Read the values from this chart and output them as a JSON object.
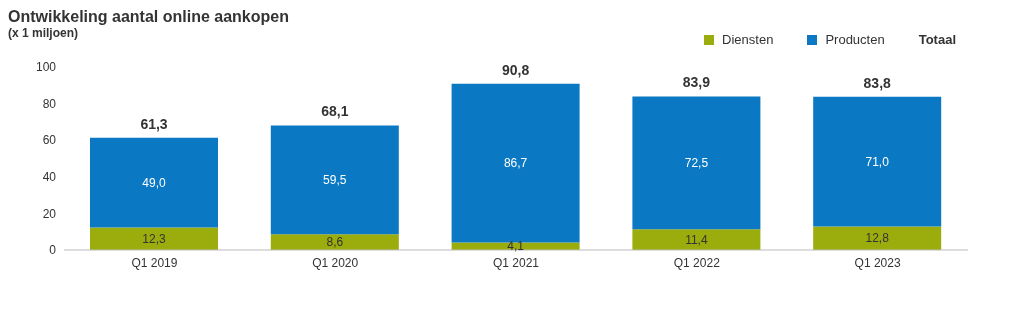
{
  "chart_data": {
    "type": "bar",
    "title": "Ontwikkeling aantal online aankopen",
    "subtitle": "(x 1 miljoen)",
    "categories": [
      "Q1 2019",
      "Q1 2020",
      "Q1 2021",
      "Q1 2022",
      "Q1 2023"
    ],
    "stacked": true,
    "series": [
      {
        "name": "Diensten",
        "color": "#9aad0c",
        "values": [
          12.3,
          8.6,
          4.1,
          11.4,
          12.8
        ],
        "value_labels": [
          "12,3",
          "8,6",
          "4,1",
          "11,4",
          "12,8"
        ]
      },
      {
        "name": "Producten",
        "color": "#0a78c3",
        "values": [
          49.0,
          59.5,
          86.7,
          72.5,
          71.0
        ],
        "value_labels": [
          "49,0",
          "59,5",
          "86,7",
          "72,5",
          "71,0"
        ]
      }
    ],
    "totals": [
      "61,3",
      "68,1",
      "90,8",
      "83,9",
      "83,8"
    ],
    "annotations": [
      "Totaal"
    ],
    "ylim": [
      0,
      100
    ],
    "yticks": [
      0,
      20,
      40,
      60,
      80,
      100
    ],
    "grid": false,
    "legend": "top right"
  }
}
